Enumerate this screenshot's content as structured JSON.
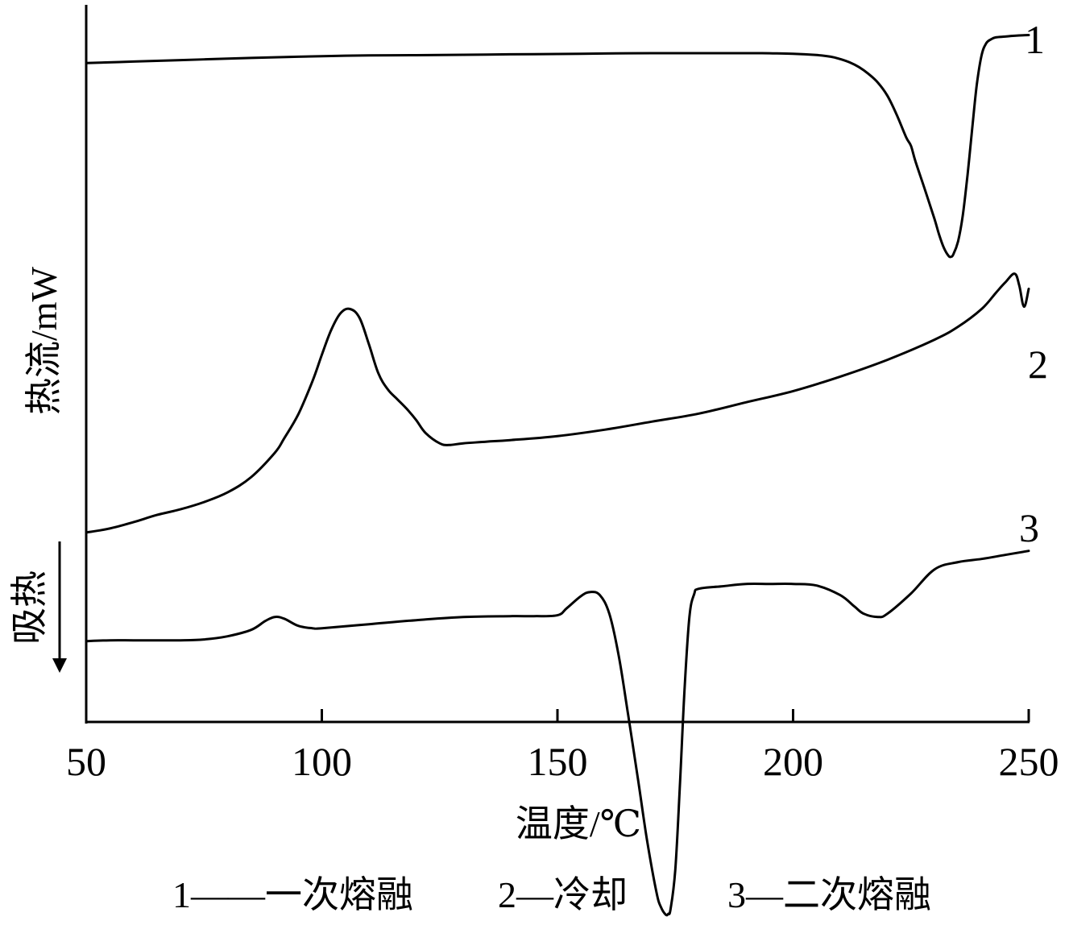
{
  "chart_data": {
    "type": "line",
    "xlabel": "温度/℃",
    "ylabel": "热流/mW",
    "endotherm_label": "吸热",
    "endotherm_direction": "down",
    "xlim": [
      50,
      250
    ],
    "xticks": [
      50,
      100,
      150,
      200,
      250
    ],
    "xtick_labels": [
      "50",
      "100",
      "150",
      "200",
      "250"
    ],
    "y_ticks_shown": false,
    "grid": false,
    "legend_text": [
      "1——一次熔融",
      "2—冷却",
      "3—二次熔融"
    ],
    "series": [
      {
        "name": "1",
        "description_label": "1——一次熔融",
        "color": "#000000",
        "x": [
          50,
          60,
          70,
          80,
          90,
          100,
          110,
          120,
          130,
          140,
          150,
          160,
          170,
          180,
          190,
          195,
          200,
          205,
          208,
          210,
          212,
          214,
          216,
          218,
          220,
          222,
          224,
          225,
          226,
          228,
          230,
          231,
          232,
          233,
          233.5,
          234,
          235,
          236,
          237,
          238,
          239,
          240,
          241,
          242,
          243,
          245,
          247,
          250
        ],
        "y": [
          5.08,
          5.21,
          5.33,
          5.46,
          5.57,
          5.67,
          5.73,
          5.75,
          5.78,
          5.82,
          5.85,
          5.89,
          5.92,
          5.92,
          5.92,
          5.91,
          5.87,
          5.76,
          5.62,
          5.42,
          5.14,
          4.74,
          4.17,
          3.43,
          2.33,
          0.71,
          -1.19,
          -1.9,
          -3.26,
          -5.63,
          -8.07,
          -9.43,
          -10.52,
          -11.2,
          -11.27,
          -11.07,
          -9.97,
          -7.8,
          -4.41,
          -0.47,
          3.3,
          5.74,
          6.76,
          7.09,
          7.25,
          7.32,
          7.39,
          7.45
        ]
      },
      {
        "name": "2",
        "description_label": "2—冷却",
        "color": "#000000",
        "x": [
          50,
          55,
          60,
          65,
          70,
          75,
          80,
          85,
          90,
          92,
          95,
          98,
          100,
          102,
          104,
          106,
          108,
          110,
          112,
          114,
          116,
          118,
          120,
          122,
          125,
          127,
          130,
          135,
          140,
          150,
          160,
          170,
          180,
          190,
          200,
          210,
          220,
          230,
          235,
          240,
          243,
          245,
          247,
          248,
          249,
          250
        ],
        "y": [
          -34.55,
          -34.21,
          -33.68,
          -33.07,
          -32.59,
          -31.98,
          -31.16,
          -29.87,
          -27.83,
          -26.61,
          -24.57,
          -21.79,
          -19.55,
          -17.44,
          -16.02,
          -15.68,
          -16.43,
          -18.67,
          -21.11,
          -22.47,
          -23.29,
          -24.1,
          -25.05,
          -26.14,
          -27.02,
          -27.16,
          -27.02,
          -26.88,
          -26.75,
          -26.41,
          -25.87,
          -25.19,
          -24.51,
          -23.56,
          -22.61,
          -21.39,
          -19.97,
          -18.27,
          -17.18,
          -15.68,
          -14.33,
          -13.44,
          -12.7,
          -13.71,
          -15.48,
          -13.98
        ]
      },
      {
        "name": "3",
        "description_label": "3—二次熔融",
        "color": "#000000",
        "x": [
          50,
          55,
          60,
          65,
          70,
          75,
          80,
          85,
          88,
          90,
          92,
          95,
          98,
          100,
          110,
          120,
          130,
          140,
          145,
          150,
          152,
          155,
          157,
          159,
          161,
          163,
          165,
          167,
          169,
          171,
          172,
          173,
          173.5,
          174,
          175,
          176,
          177,
          178,
          179,
          180,
          185,
          190,
          195,
          200,
          205,
          210,
          213,
          215,
          218,
          220,
          225,
          230,
          235,
          240,
          245,
          250
        ],
        "y": [
          -43.72,
          -43.65,
          -43.65,
          -43.65,
          -43.65,
          -43.58,
          -43.31,
          -42.77,
          -42.02,
          -41.68,
          -41.82,
          -42.43,
          -42.63,
          -42.63,
          -42.29,
          -41.95,
          -41.68,
          -41.61,
          -41.61,
          -41.54,
          -40.93,
          -39.91,
          -39.57,
          -39.84,
          -41.41,
          -44.94,
          -49.96,
          -55.13,
          -60.5,
          -64.92,
          -66.21,
          -66.82,
          -66.75,
          -66.34,
          -63.01,
          -55.74,
          -47.52,
          -41.68,
          -39.77,
          -39.3,
          -39.09,
          -38.89,
          -38.89,
          -38.89,
          -39.03,
          -39.84,
          -40.79,
          -41.41,
          -41.68,
          -41.41,
          -39.7,
          -37.67,
          -37.05,
          -36.78,
          -36.44,
          -36.1
        ]
      }
    ]
  }
}
